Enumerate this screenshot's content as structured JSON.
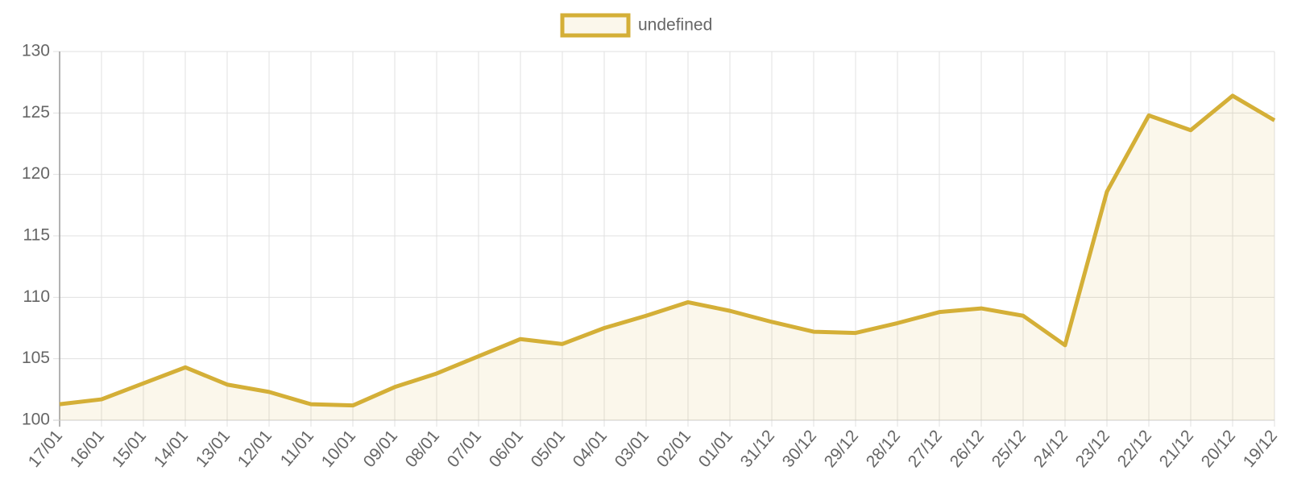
{
  "chart_data": {
    "type": "line",
    "categories": [
      "17/01",
      "16/01",
      "15/01",
      "14/01",
      "13/01",
      "12/01",
      "11/01",
      "10/01",
      "09/01",
      "08/01",
      "07/01",
      "06/01",
      "05/01",
      "04/01",
      "03/01",
      "02/01",
      "01/01",
      "31/12",
      "30/12",
      "29/12",
      "28/12",
      "27/12",
      "26/12",
      "25/12",
      "24/12",
      "23/12",
      "22/12",
      "21/12",
      "20/12",
      "19/12"
    ],
    "series": [
      {
        "name": "undefined",
        "color": "#d4af37",
        "values": [
          101.3,
          101.7,
          103.0,
          104.3,
          102.9,
          102.3,
          101.3,
          101.2,
          102.7,
          103.8,
          105.2,
          106.6,
          106.2,
          107.5,
          108.5,
          109.6,
          108.9,
          108.0,
          107.2,
          107.1,
          107.9,
          108.8,
          109.1,
          108.5,
          106.1,
          118.6,
          124.8,
          123.6,
          126.4,
          124.4
        ]
      }
    ],
    "ylim": [
      100,
      130
    ],
    "yticks": [
      100,
      105,
      110,
      115,
      120,
      125,
      130
    ],
    "grid": true,
    "legend": "top"
  }
}
